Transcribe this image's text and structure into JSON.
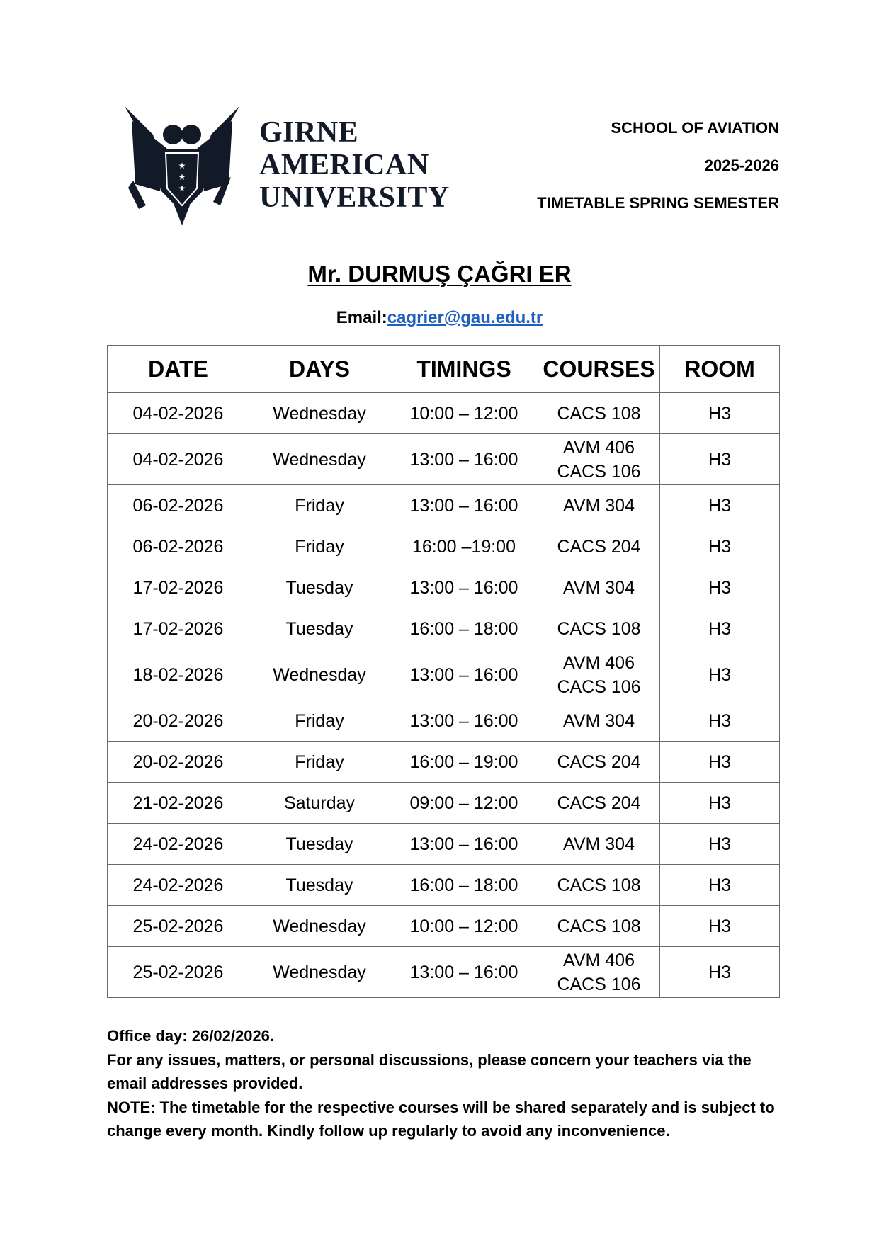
{
  "header": {
    "university_lines": [
      "GIRNE",
      "AMERICAN",
      "UNIVERSITY"
    ],
    "school": "SCHOOL OF AVIATION",
    "year": "2025-2026",
    "semester": "TIMETABLE SPRING SEMESTER"
  },
  "instructor": {
    "name": "Mr. DURMUŞ ÇAĞRI ER",
    "email_label": "Email:",
    "email": "cagrier@gau.edu.tr"
  },
  "table": {
    "columns": [
      "DATE",
      "DAYS",
      "TIMINGS",
      "COURSES",
      "ROOM"
    ],
    "rows": [
      {
        "date": "04-02-2026",
        "day": "Wednesday",
        "time": "10:00 – 12:00",
        "courses": [
          "CACS 108"
        ],
        "room": "H3"
      },
      {
        "date": "04-02-2026",
        "day": "Wednesday",
        "time": "13:00 – 16:00",
        "courses": [
          "AVM 406",
          "CACS 106"
        ],
        "room": "H3"
      },
      {
        "date": "06-02-2026",
        "day": "Friday",
        "time": "13:00 – 16:00",
        "courses": [
          "AVM 304"
        ],
        "room": "H3"
      },
      {
        "date": "06-02-2026",
        "day": "Friday",
        "time": "16:00 –19:00",
        "courses": [
          "CACS 204"
        ],
        "room": "H3"
      },
      {
        "date": "17-02-2026",
        "day": "Tuesday",
        "time": "13:00 – 16:00",
        "courses": [
          "AVM 304"
        ],
        "room": "H3"
      },
      {
        "date": "17-02-2026",
        "day": "Tuesday",
        "time": "16:00 – 18:00",
        "courses": [
          "CACS 108"
        ],
        "room": "H3"
      },
      {
        "date": "18-02-2026",
        "day": "Wednesday",
        "time": "13:00 – 16:00",
        "courses": [
          "AVM 406",
          "CACS 106"
        ],
        "room": "H3"
      },
      {
        "date": "20-02-2026",
        "day": "Friday",
        "time": "13:00 – 16:00",
        "courses": [
          "AVM 304"
        ],
        "room": "H3"
      },
      {
        "date": "20-02-2026",
        "day": "Friday",
        "time": "16:00 – 19:00",
        "courses": [
          "CACS 204"
        ],
        "room": "H3"
      },
      {
        "date": "21-02-2026",
        "day": "Saturday",
        "time": "09:00 – 12:00",
        "courses": [
          "CACS 204"
        ],
        "room": "H3"
      },
      {
        "date": "24-02-2026",
        "day": "Tuesday",
        "time": "13:00 – 16:00",
        "courses": [
          "AVM 304"
        ],
        "room": "H3"
      },
      {
        "date": "24-02-2026",
        "day": "Tuesday",
        "time": "16:00 – 18:00",
        "courses": [
          "CACS 108"
        ],
        "room": "H3"
      },
      {
        "date": "25-02-2026",
        "day": "Wednesday",
        "time": "10:00 – 12:00",
        "courses": [
          "CACS 108"
        ],
        "room": "H3"
      },
      {
        "date": "25-02-2026",
        "day": "Wednesday",
        "time": "13:00 – 16:00",
        "courses": [
          "AVM 406",
          "CACS 106"
        ],
        "room": "H3"
      }
    ]
  },
  "footer": {
    "office_day": "Office day: 26/02/2026.",
    "contact_note": "For any issues, matters, or personal discussions, please concern your teachers via the email addresses provided.",
    "note": "NOTE: The timetable for the respective courses will be shared separately and is subject to change every month. Kindly follow up regularly to avoid any inconvenience."
  },
  "colors": {
    "link": "#1f5fbf",
    "logo": "#111a26"
  }
}
